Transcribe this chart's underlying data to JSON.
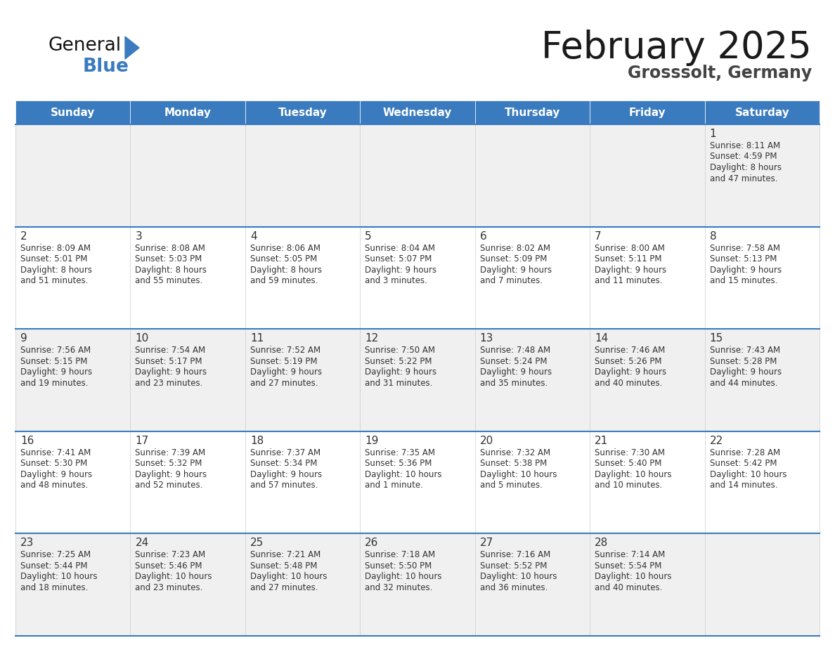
{
  "title": "February 2025",
  "subtitle": "Grosssolt, Germany",
  "days_of_week": [
    "Sunday",
    "Monday",
    "Tuesday",
    "Wednesday",
    "Thursday",
    "Friday",
    "Saturday"
  ],
  "header_bg": "#3a7bbf",
  "header_text": "#ffffff",
  "row_bg_odd": "#f0f0f0",
  "row_bg_even": "#ffffff",
  "cell_border_color": "#3a7bbf",
  "day_number_color": "#333333",
  "info_text_color": "#333333",
  "title_color": "#1a1a1a",
  "subtitle_color": "#444444",
  "logo_general_color": "#111111",
  "logo_blue_color": "#3a7bbf",
  "calendar_data": [
    [
      null,
      null,
      null,
      null,
      null,
      null,
      {
        "day": 1,
        "sunrise": "8:11 AM",
        "sunset": "4:59 PM",
        "daylight_line1": "Daylight: 8 hours",
        "daylight_line2": "and 47 minutes."
      }
    ],
    [
      {
        "day": 2,
        "sunrise": "8:09 AM",
        "sunset": "5:01 PM",
        "daylight_line1": "Daylight: 8 hours",
        "daylight_line2": "and 51 minutes."
      },
      {
        "day": 3,
        "sunrise": "8:08 AM",
        "sunset": "5:03 PM",
        "daylight_line1": "Daylight: 8 hours",
        "daylight_line2": "and 55 minutes."
      },
      {
        "day": 4,
        "sunrise": "8:06 AM",
        "sunset": "5:05 PM",
        "daylight_line1": "Daylight: 8 hours",
        "daylight_line2": "and 59 minutes."
      },
      {
        "day": 5,
        "sunrise": "8:04 AM",
        "sunset": "5:07 PM",
        "daylight_line1": "Daylight: 9 hours",
        "daylight_line2": "and 3 minutes."
      },
      {
        "day": 6,
        "sunrise": "8:02 AM",
        "sunset": "5:09 PM",
        "daylight_line1": "Daylight: 9 hours",
        "daylight_line2": "and 7 minutes."
      },
      {
        "day": 7,
        "sunrise": "8:00 AM",
        "sunset": "5:11 PM",
        "daylight_line1": "Daylight: 9 hours",
        "daylight_line2": "and 11 minutes."
      },
      {
        "day": 8,
        "sunrise": "7:58 AM",
        "sunset": "5:13 PM",
        "daylight_line1": "Daylight: 9 hours",
        "daylight_line2": "and 15 minutes."
      }
    ],
    [
      {
        "day": 9,
        "sunrise": "7:56 AM",
        "sunset": "5:15 PM",
        "daylight_line1": "Daylight: 9 hours",
        "daylight_line2": "and 19 minutes."
      },
      {
        "day": 10,
        "sunrise": "7:54 AM",
        "sunset": "5:17 PM",
        "daylight_line1": "Daylight: 9 hours",
        "daylight_line2": "and 23 minutes."
      },
      {
        "day": 11,
        "sunrise": "7:52 AM",
        "sunset": "5:19 PM",
        "daylight_line1": "Daylight: 9 hours",
        "daylight_line2": "and 27 minutes."
      },
      {
        "day": 12,
        "sunrise": "7:50 AM",
        "sunset": "5:22 PM",
        "daylight_line1": "Daylight: 9 hours",
        "daylight_line2": "and 31 minutes."
      },
      {
        "day": 13,
        "sunrise": "7:48 AM",
        "sunset": "5:24 PM",
        "daylight_line1": "Daylight: 9 hours",
        "daylight_line2": "and 35 minutes."
      },
      {
        "day": 14,
        "sunrise": "7:46 AM",
        "sunset": "5:26 PM",
        "daylight_line1": "Daylight: 9 hours",
        "daylight_line2": "and 40 minutes."
      },
      {
        "day": 15,
        "sunrise": "7:43 AM",
        "sunset": "5:28 PM",
        "daylight_line1": "Daylight: 9 hours",
        "daylight_line2": "and 44 minutes."
      }
    ],
    [
      {
        "day": 16,
        "sunrise": "7:41 AM",
        "sunset": "5:30 PM",
        "daylight_line1": "Daylight: 9 hours",
        "daylight_line2": "and 48 minutes."
      },
      {
        "day": 17,
        "sunrise": "7:39 AM",
        "sunset": "5:32 PM",
        "daylight_line1": "Daylight: 9 hours",
        "daylight_line2": "and 52 minutes."
      },
      {
        "day": 18,
        "sunrise": "7:37 AM",
        "sunset": "5:34 PM",
        "daylight_line1": "Daylight: 9 hours",
        "daylight_line2": "and 57 minutes."
      },
      {
        "day": 19,
        "sunrise": "7:35 AM",
        "sunset": "5:36 PM",
        "daylight_line1": "Daylight: 10 hours",
        "daylight_line2": "and 1 minute."
      },
      {
        "day": 20,
        "sunrise": "7:32 AM",
        "sunset": "5:38 PM",
        "daylight_line1": "Daylight: 10 hours",
        "daylight_line2": "and 5 minutes."
      },
      {
        "day": 21,
        "sunrise": "7:30 AM",
        "sunset": "5:40 PM",
        "daylight_line1": "Daylight: 10 hours",
        "daylight_line2": "and 10 minutes."
      },
      {
        "day": 22,
        "sunrise": "7:28 AM",
        "sunset": "5:42 PM",
        "daylight_line1": "Daylight: 10 hours",
        "daylight_line2": "and 14 minutes."
      }
    ],
    [
      {
        "day": 23,
        "sunrise": "7:25 AM",
        "sunset": "5:44 PM",
        "daylight_line1": "Daylight: 10 hours",
        "daylight_line2": "and 18 minutes."
      },
      {
        "day": 24,
        "sunrise": "7:23 AM",
        "sunset": "5:46 PM",
        "daylight_line1": "Daylight: 10 hours",
        "daylight_line2": "and 23 minutes."
      },
      {
        "day": 25,
        "sunrise": "7:21 AM",
        "sunset": "5:48 PM",
        "daylight_line1": "Daylight: 10 hours",
        "daylight_line2": "and 27 minutes."
      },
      {
        "day": 26,
        "sunrise": "7:18 AM",
        "sunset": "5:50 PM",
        "daylight_line1": "Daylight: 10 hours",
        "daylight_line2": "and 32 minutes."
      },
      {
        "day": 27,
        "sunrise": "7:16 AM",
        "sunset": "5:52 PM",
        "daylight_line1": "Daylight: 10 hours",
        "daylight_line2": "and 36 minutes."
      },
      {
        "day": 28,
        "sunrise": "7:14 AM",
        "sunset": "5:54 PM",
        "daylight_line1": "Daylight: 10 hours",
        "daylight_line2": "and 40 minutes."
      },
      null
    ]
  ]
}
